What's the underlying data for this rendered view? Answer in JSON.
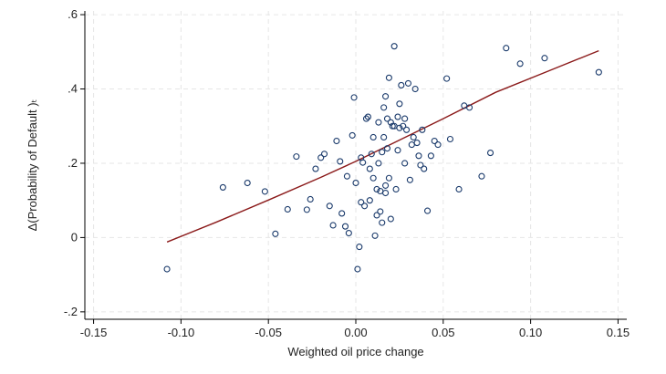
{
  "chart_data": {
    "type": "scatter",
    "title": "",
    "xlabel": "Weighted oil price change",
    "ylabel": "Δ(Probability of Default )ₜ",
    "xlim": [
      -0.155,
      0.155
    ],
    "ylim": [
      -0.22,
      0.61
    ],
    "x_ticks": [
      -0.15,
      -0.1,
      -0.05,
      0.0,
      0.05,
      0.1,
      0.15
    ],
    "x_tick_labels": [
      "-0.15",
      "-0.10",
      "-0.05",
      "0.00",
      "0.05",
      "0.10",
      "0.15"
    ],
    "y_ticks": [
      -0.2,
      0,
      0.2,
      0.4,
      0.6
    ],
    "y_tick_labels": [
      "-.2",
      "0",
      ".2",
      ".4",
      ".6"
    ],
    "grid": true,
    "colors": {
      "marker": "#1a3a6b",
      "fit_line": "#8b1a1a",
      "grid": "#e6e6e6",
      "axis": "#000000"
    },
    "points": [
      [
        -0.108,
        -0.085
      ],
      [
        -0.076,
        0.135
      ],
      [
        -0.062,
        0.147
      ],
      [
        -0.052,
        0.124
      ],
      [
        -0.046,
        0.01
      ],
      [
        -0.039,
        0.076
      ],
      [
        -0.034,
        0.218
      ],
      [
        -0.028,
        0.075
      ],
      [
        -0.026,
        0.103
      ],
      [
        -0.023,
        0.185
      ],
      [
        -0.02,
        0.215
      ],
      [
        -0.018,
        0.225
      ],
      [
        -0.015,
        0.085
      ],
      [
        -0.013,
        0.033
      ],
      [
        -0.011,
        0.26
      ],
      [
        -0.009,
        0.205
      ],
      [
        -0.008,
        0.065
      ],
      [
        -0.006,
        0.03
      ],
      [
        -0.005,
        0.165
      ],
      [
        -0.004,
        0.012
      ],
      [
        -0.002,
        0.275
      ],
      [
        -0.001,
        0.377
      ],
      [
        0.0,
        0.147
      ],
      [
        0.001,
        -0.085
      ],
      [
        0.002,
        -0.025
      ],
      [
        0.003,
        0.215
      ],
      [
        0.003,
        0.095
      ],
      [
        0.004,
        0.202
      ],
      [
        0.005,
        0.085
      ],
      [
        0.006,
        0.32
      ],
      [
        0.007,
        0.325
      ],
      [
        0.008,
        0.185
      ],
      [
        0.008,
        0.1
      ],
      [
        0.009,
        0.225
      ],
      [
        0.01,
        0.27
      ],
      [
        0.01,
        0.16
      ],
      [
        0.011,
        0.005
      ],
      [
        0.012,
        0.13
      ],
      [
        0.012,
        0.06
      ],
      [
        0.013,
        0.31
      ],
      [
        0.013,
        0.2
      ],
      [
        0.014,
        0.125
      ],
      [
        0.014,
        0.07
      ],
      [
        0.015,
        0.04
      ],
      [
        0.015,
        0.23
      ],
      [
        0.016,
        0.27
      ],
      [
        0.016,
        0.35
      ],
      [
        0.017,
        0.38
      ],
      [
        0.017,
        0.14
      ],
      [
        0.017,
        0.12
      ],
      [
        0.018,
        0.32
      ],
      [
        0.018,
        0.24
      ],
      [
        0.019,
        0.43
      ],
      [
        0.019,
        0.16
      ],
      [
        0.02,
        0.31
      ],
      [
        0.02,
        0.05
      ],
      [
        0.021,
        0.3
      ],
      [
        0.022,
        0.515
      ],
      [
        0.022,
        0.3
      ],
      [
        0.023,
        0.13
      ],
      [
        0.024,
        0.325
      ],
      [
        0.024,
        0.235
      ],
      [
        0.025,
        0.36
      ],
      [
        0.025,
        0.295
      ],
      [
        0.026,
        0.41
      ],
      [
        0.027,
        0.3
      ],
      [
        0.028,
        0.32
      ],
      [
        0.028,
        0.2
      ],
      [
        0.029,
        0.29
      ],
      [
        0.03,
        0.415
      ],
      [
        0.031,
        0.155
      ],
      [
        0.032,
        0.25
      ],
      [
        0.033,
        0.27
      ],
      [
        0.034,
        0.4
      ],
      [
        0.035,
        0.255
      ],
      [
        0.036,
        0.22
      ],
      [
        0.037,
        0.195
      ],
      [
        0.038,
        0.29
      ],
      [
        0.039,
        0.185
      ],
      [
        0.041,
        0.072
      ],
      [
        0.043,
        0.22
      ],
      [
        0.045,
        0.26
      ],
      [
        0.047,
        0.25
      ],
      [
        0.052,
        0.428
      ],
      [
        0.054,
        0.265
      ],
      [
        0.059,
        0.13
      ],
      [
        0.062,
        0.355
      ],
      [
        0.065,
        0.35
      ],
      [
        0.072,
        0.165
      ],
      [
        0.077,
        0.228
      ],
      [
        0.086,
        0.51
      ],
      [
        0.094,
        0.468
      ],
      [
        0.108,
        0.483
      ],
      [
        0.139,
        0.445
      ]
    ],
    "fit_line": [
      [
        -0.108,
        -0.012
      ],
      [
        -0.08,
        0.041
      ],
      [
        -0.05,
        0.101
      ],
      [
        -0.02,
        0.162
      ],
      [
        0.0,
        0.205
      ],
      [
        0.02,
        0.251
      ],
      [
        0.05,
        0.32
      ],
      [
        0.08,
        0.391
      ],
      [
        0.11,
        0.448
      ],
      [
        0.139,
        0.503
      ]
    ]
  }
}
